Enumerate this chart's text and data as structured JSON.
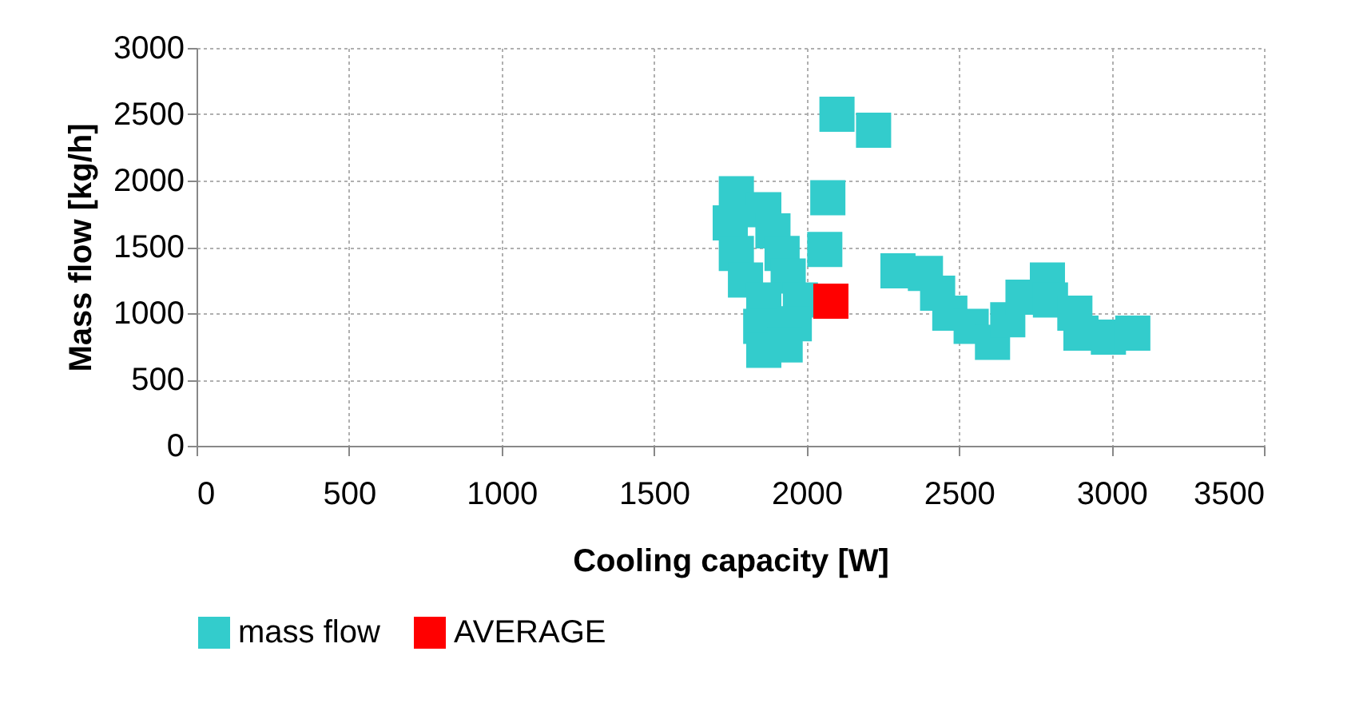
{
  "chart_data": {
    "type": "scatter",
    "xlabel": "Cooling capacity [W]",
    "ylabel": "Mass flow [kg/h]",
    "xlim": [
      0,
      3500
    ],
    "xticks": [
      0,
      500,
      1000,
      1500,
      2000,
      2500,
      3000,
      3500
    ],
    "ylim": [
      0,
      3000
    ],
    "yticks": [
      0,
      500,
      1000,
      1500,
      2000,
      2500,
      3000
    ],
    "grid": true,
    "legend": "bottom",
    "marker": "square",
    "series": [
      {
        "name": "mass flow",
        "color": "#33cccc",
        "x": [
          1770,
          1860,
          1750,
          1890,
          1770,
          1920,
          1800,
          1940,
          1860,
          1980,
          1850,
          1960,
          1860,
          1930,
          2070,
          2060,
          2100,
          2220,
          2300,
          2390,
          2430,
          2470,
          2540,
          2610,
          2660,
          2710,
          2790,
          2800,
          2880,
          2900,
          2990,
          3070
        ],
        "values": [
          1900,
          1780,
          1680,
          1620,
          1450,
          1450,
          1250,
          1280,
          1100,
          1100,
          900,
          920,
          720,
          760,
          1870,
          1480,
          2500,
          2380,
          1320,
          1300,
          1150,
          1000,
          900,
          780,
          950,
          1120,
          1250,
          1100,
          1000,
          850,
          820,
          850
        ]
      },
      {
        "name": "AVERAGE",
        "color": "#ff0000",
        "x": [
          2080
        ],
        "values": [
          1090
        ]
      }
    ]
  }
}
